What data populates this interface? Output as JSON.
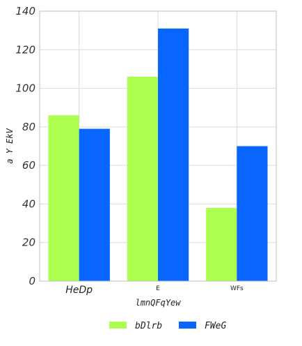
{
  "chart_data": {
    "type": "bar",
    "title": "",
    "xlabel": "lmnQFqYew",
    "ylabel": "a Y EkV",
    "categories": [
      "HeDp",
      "E",
      "WFs"
    ],
    "series": [
      {
        "name": "bDlrb",
        "color": "#adff4f",
        "values": [
          86,
          106,
          38
        ]
      },
      {
        "name": "FWeG",
        "color": "#0866ff",
        "values": [
          79,
          131,
          70
        ]
      }
    ],
    "ylim": [
      0,
      140
    ],
    "yticks": [
      0,
      20,
      40,
      60,
      80,
      100,
      120,
      140
    ],
    "grid": true,
    "legend_position": "bottom-center"
  }
}
